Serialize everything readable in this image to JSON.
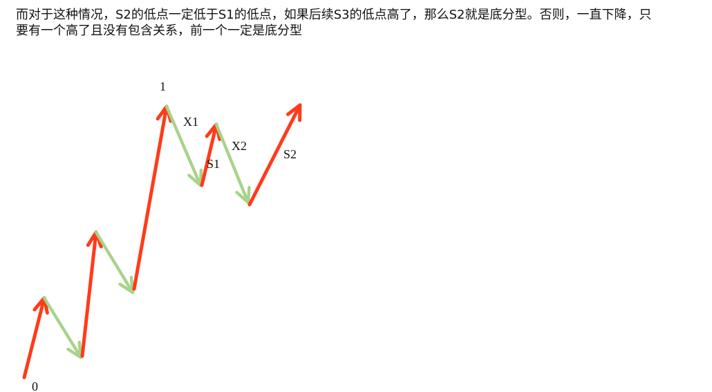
{
  "text": {
    "line1": "而对于这种情况，S2的低点一定低于S1的低点，如果后续S3的低点高了，那么S2就是底分型。否则，一直下降，只",
    "line2": "要有一个高了且没有包含关系，前一个一定是底分型"
  },
  "diagram": {
    "colors": {
      "up": "#ff3b1a",
      "down": "#a8d38a"
    },
    "labels": {
      "origin": "0",
      "peak": "1",
      "x1": "X1",
      "x2": "X2",
      "s1": "S1",
      "s2": "S2"
    }
  }
}
